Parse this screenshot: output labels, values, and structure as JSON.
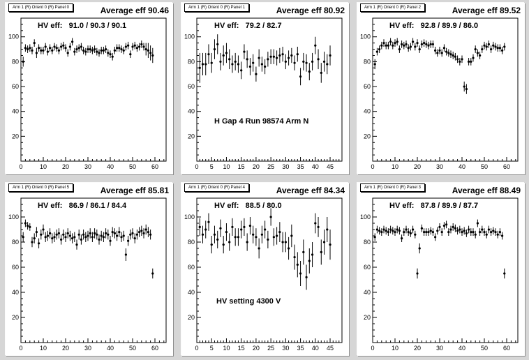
{
  "chart_data": [
    {
      "type": "scatter",
      "pad_title": "Arm 1 (R) Orient 0 (R) Panel 0",
      "average_label": "Average eff 90.46",
      "hv_label": "HV eff:   91.0 / 90.3 / 90.1",
      "note": "",
      "xlim": [
        0,
        65
      ],
      "ylim": [
        0,
        115
      ],
      "xticks": [
        0,
        10,
        20,
        30,
        40,
        50,
        60
      ],
      "yticks": [
        20,
        40,
        60,
        80,
        100
      ],
      "x": [
        1,
        2,
        3,
        4,
        5,
        6,
        7,
        8,
        9,
        10,
        11,
        12,
        13,
        14,
        15,
        16,
        17,
        18,
        19,
        20,
        21,
        22,
        23,
        24,
        25,
        26,
        27,
        28,
        29,
        30,
        31,
        32,
        33,
        34,
        35,
        36,
        37,
        38,
        39,
        40,
        41,
        42,
        43,
        44,
        45,
        46,
        47,
        48,
        49,
        50,
        51,
        52,
        53,
        54,
        55,
        56,
        57,
        58,
        59
      ],
      "y": [
        80,
        91,
        90,
        91,
        89,
        95,
        87,
        91,
        89,
        89,
        92,
        88,
        91,
        89,
        92,
        91,
        89,
        92,
        93,
        91,
        87,
        92,
        96,
        88,
        90,
        91,
        92,
        89,
        88,
        90,
        90,
        89,
        90,
        88,
        87,
        89,
        89,
        90,
        87,
        86,
        84,
        89,
        91,
        91,
        90,
        89,
        92,
        93,
        86,
        92,
        93,
        91,
        92,
        94,
        92,
        90,
        89,
        87,
        85
      ],
      "err": [
        4,
        3,
        3,
        3,
        3,
        3,
        4,
        3,
        3,
        3,
        3,
        3,
        3,
        3,
        3,
        3,
        3,
        3,
        3,
        3,
        3,
        3,
        3,
        3,
        3,
        3,
        3,
        3,
        3,
        3,
        3,
        3,
        3,
        3,
        3,
        3,
        3,
        3,
        3,
        3,
        3,
        3,
        3,
        3,
        3,
        3,
        3,
        3,
        3,
        3,
        3,
        3,
        3,
        3,
        3,
        5,
        6,
        6,
        6
      ]
    },
    {
      "type": "scatter",
      "pad_title": "Arm 1 (R) Orient 0 (R) Panel 1",
      "average_label": "Average eff 80.92",
      "hv_label": "HV eff:   79.2 / 82.7",
      "note": "H Gap 4 Run 98574 Arm N",
      "xlim": [
        0,
        49
      ],
      "ylim": [
        0,
        115
      ],
      "xticks": [
        0,
        5,
        10,
        15,
        20,
        25,
        30,
        35,
        40,
        45
      ],
      "yticks": [
        20,
        40,
        60,
        80,
        100
      ],
      "x": [
        1,
        2,
        3,
        4,
        5,
        6,
        7,
        8,
        9,
        10,
        11,
        12,
        13,
        14,
        15,
        16,
        17,
        18,
        19,
        20,
        21,
        22,
        23,
        24,
        25,
        26,
        27,
        28,
        29,
        30,
        31,
        32,
        33,
        34,
        35,
        36,
        37,
        38,
        39,
        40,
        41,
        42,
        43,
        44,
        45
      ],
      "y": [
        75,
        78,
        78,
        86,
        79,
        90,
        94,
        80,
        85,
        87,
        82,
        78,
        80,
        78,
        73,
        88,
        82,
        76,
        79,
        70,
        83,
        78,
        76,
        82,
        84,
        84,
        83,
        85,
        86,
        80,
        83,
        85,
        79,
        86,
        68,
        80,
        79,
        72,
        80,
        93,
        82,
        71,
        80,
        78,
        85
      ],
      "err": [
        12,
        9,
        9,
        8,
        8,
        8,
        8,
        7,
        8,
        8,
        8,
        7,
        7,
        7,
        7,
        6,
        7,
        7,
        7,
        6,
        7,
        6,
        6,
        6,
        6,
        6,
        6,
        6,
        6,
        6,
        6,
        6,
        6,
        6,
        7,
        7,
        7,
        7,
        7,
        7,
        8,
        8,
        8,
        8,
        8
      ]
    },
    {
      "type": "scatter",
      "pad_title": "Arm 1 (R) Orient 0 (R) Panel 2",
      "average_label": "Average eff 89.52",
      "hv_label": "HV eff:   92.8 / 89.9 / 86.0",
      "note": "",
      "xlim": [
        0,
        65
      ],
      "ylim": [
        0,
        115
      ],
      "xticks": [
        0,
        10,
        20,
        30,
        40,
        50,
        60
      ],
      "yticks": [
        20,
        40,
        60,
        80,
        100
      ],
      "x": [
        1,
        2,
        3,
        4,
        5,
        6,
        7,
        8,
        9,
        10,
        11,
        12,
        13,
        14,
        15,
        16,
        17,
        18,
        19,
        20,
        21,
        22,
        23,
        24,
        25,
        26,
        27,
        28,
        29,
        30,
        31,
        32,
        33,
        34,
        35,
        36,
        37,
        38,
        39,
        40,
        41,
        42,
        43,
        44,
        45,
        46,
        47,
        48,
        49,
        50,
        51,
        52,
        53,
        54,
        55,
        56,
        57,
        58,
        59
      ],
      "y": [
        78,
        88,
        90,
        93,
        95,
        93,
        93,
        96,
        93,
        95,
        96,
        90,
        94,
        93,
        94,
        91,
        92,
        96,
        92,
        95,
        90,
        94,
        95,
        94,
        93,
        94,
        94,
        89,
        87,
        89,
        87,
        91,
        88,
        87,
        86,
        85,
        84,
        82,
        80,
        82,
        60,
        58,
        80,
        80,
        83,
        90,
        87,
        85,
        90,
        93,
        92,
        94,
        90,
        93,
        92,
        91,
        91,
        89,
        92
      ],
      "err": [
        4,
        3,
        3,
        3,
        3,
        3,
        3,
        3,
        3,
        3,
        3,
        3,
        3,
        3,
        3,
        3,
        3,
        3,
        3,
        3,
        3,
        3,
        3,
        3,
        3,
        3,
        3,
        3,
        3,
        3,
        3,
        3,
        3,
        3,
        3,
        3,
        3,
        3,
        3,
        3,
        4,
        4,
        3,
        3,
        3,
        3,
        3,
        3,
        3,
        3,
        3,
        3,
        3,
        3,
        3,
        3,
        3,
        3,
        3
      ]
    },
    {
      "type": "scatter",
      "pad_title": "Arm 1 (R) Orient 0 (R) Panel 5",
      "average_label": "Average eff 85.81",
      "hv_label": "HV eff:   86.9 / 86.1 / 84.4",
      "note": "",
      "xlim": [
        0,
        65
      ],
      "ylim": [
        0,
        115
      ],
      "xticks": [
        0,
        10,
        20,
        30,
        40,
        50,
        60
      ],
      "yticks": [
        20,
        40,
        60,
        80,
        100
      ],
      "x": [
        1,
        2,
        3,
        4,
        5,
        6,
        7,
        8,
        9,
        10,
        11,
        12,
        13,
        14,
        15,
        16,
        17,
        18,
        19,
        20,
        21,
        22,
        23,
        24,
        25,
        26,
        27,
        28,
        29,
        30,
        31,
        32,
        33,
        34,
        35,
        36,
        37,
        38,
        39,
        40,
        41,
        42,
        43,
        44,
        45,
        46,
        47,
        48,
        49,
        50,
        51,
        52,
        53,
        54,
        55,
        56,
        57,
        58,
        59
      ],
      "y": [
        84,
        95,
        93,
        92,
        80,
        83,
        88,
        79,
        86,
        90,
        84,
        85,
        87,
        83,
        84,
        86,
        87,
        82,
        86,
        84,
        87,
        85,
        83,
        84,
        78,
        86,
        82,
        86,
        84,
        85,
        87,
        84,
        87,
        86,
        82,
        85,
        84,
        87,
        86,
        81,
        88,
        87,
        85,
        88,
        84,
        85,
        70,
        81,
        86,
        87,
        83,
        86,
        88,
        89,
        87,
        90,
        88,
        86,
        55
      ],
      "err": [
        4,
        3,
        3,
        3,
        4,
        4,
        4,
        4,
        4,
        4,
        4,
        4,
        4,
        4,
        4,
        4,
        4,
        4,
        4,
        4,
        4,
        4,
        4,
        4,
        4,
        4,
        4,
        4,
        4,
        4,
        4,
        4,
        4,
        4,
        4,
        4,
        4,
        4,
        4,
        4,
        4,
        4,
        4,
        4,
        4,
        4,
        5,
        4,
        4,
        4,
        4,
        4,
        4,
        4,
        4,
        4,
        4,
        4,
        4
      ]
    },
    {
      "type": "scatter",
      "pad_title": "Arm 1 (R) Orient 0 (R) Panel 4",
      "average_label": "Average eff 84.34",
      "hv_label": "HV eff:   88.5 / 80.0",
      "note": "HV setting 4300 V",
      "xlim": [
        0,
        49
      ],
      "ylim": [
        0,
        115
      ],
      "xticks": [
        0,
        5,
        10,
        15,
        20,
        25,
        30,
        35,
        40,
        45
      ],
      "yticks": [
        20,
        40,
        60,
        80,
        100
      ],
      "x": [
        1,
        2,
        3,
        4,
        5,
        6,
        7,
        8,
        9,
        10,
        11,
        12,
        13,
        14,
        15,
        16,
        17,
        18,
        19,
        20,
        21,
        22,
        23,
        24,
        25,
        26,
        27,
        28,
        29,
        30,
        31,
        32,
        33,
        34,
        35,
        36,
        37,
        38,
        39,
        40,
        41,
        42,
        43,
        44,
        45
      ],
      "y": [
        92,
        86,
        90,
        96,
        78,
        86,
        82,
        91,
        78,
        88,
        80,
        92,
        84,
        84,
        90,
        92,
        80,
        93,
        86,
        84,
        75,
        86,
        90,
        82,
        100,
        84,
        85,
        88,
        80,
        80,
        75,
        85,
        68,
        62,
        55,
        72,
        52,
        65,
        70,
        95,
        92,
        72,
        80,
        90,
        78
      ],
      "err": [
        7,
        7,
        7,
        7,
        7,
        7,
        7,
        7,
        7,
        7,
        7,
        7,
        7,
        7,
        7,
        7,
        7,
        7,
        7,
        7,
        8,
        7,
        7,
        7,
        7,
        7,
        7,
        8,
        8,
        8,
        9,
        9,
        10,
        10,
        10,
        10,
        10,
        10,
        10,
        8,
        8,
        10,
        10,
        10,
        12
      ]
    },
    {
      "type": "scatter",
      "pad_title": "Arm 1 (R) Orient 0 (R) Panel 3",
      "average_label": "Average eff 88.49",
      "hv_label": "HV eff:   87.8 / 89.9 / 87.7",
      "note": "",
      "xlim": [
        0,
        65
      ],
      "ylim": [
        0,
        115
      ],
      "xticks": [
        0,
        10,
        20,
        30,
        40,
        50,
        60
      ],
      "yticks": [
        20,
        40,
        60,
        80,
        100
      ],
      "x": [
        1,
        2,
        3,
        4,
        5,
        6,
        7,
        8,
        9,
        10,
        11,
        12,
        13,
        14,
        15,
        16,
        17,
        18,
        19,
        20,
        21,
        22,
        23,
        24,
        25,
        26,
        27,
        28,
        29,
        30,
        31,
        32,
        33,
        34,
        35,
        36,
        37,
        38,
        39,
        40,
        41,
        42,
        43,
        44,
        45,
        46,
        47,
        48,
        49,
        50,
        51,
        52,
        53,
        54,
        55,
        56,
        57,
        58,
        59
      ],
      "y": [
        84,
        90,
        89,
        88,
        90,
        89,
        88,
        90,
        89,
        88,
        90,
        89,
        83,
        88,
        90,
        88,
        87,
        90,
        86,
        55,
        75,
        91,
        88,
        88,
        88,
        89,
        88,
        84,
        89,
        92,
        88,
        93,
        94,
        88,
        90,
        92,
        91,
        89,
        90,
        88,
        89,
        87,
        90,
        88,
        88,
        86,
        95,
        88,
        90,
        88,
        86,
        90,
        88,
        89,
        88,
        86,
        88,
        85,
        55
      ],
      "err": [
        3,
        3,
        3,
        3,
        3,
        3,
        3,
        3,
        3,
        3,
        3,
        3,
        3,
        3,
        3,
        3,
        3,
        3,
        3,
        4,
        4,
        3,
        3,
        3,
        3,
        3,
        3,
        3,
        3,
        3,
        3,
        3,
        3,
        3,
        3,
        3,
        3,
        3,
        3,
        3,
        3,
        3,
        3,
        3,
        3,
        3,
        3,
        3,
        3,
        3,
        3,
        3,
        3,
        3,
        3,
        3,
        3,
        3,
        4
      ]
    }
  ]
}
